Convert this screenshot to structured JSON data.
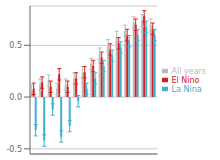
{
  "chart_data": {
    "type": "bar",
    "categories": [
      null,
      null,
      null,
      null,
      null,
      null,
      null,
      null,
      null,
      null,
      null,
      null,
      null,
      null,
      null
    ],
    "series": [
      {
        "name": "All years",
        "color": "#bbbbbb",
        "values": [
          0.06,
          0.12,
          0.16,
          0.08,
          0.12,
          0.18,
          0.24,
          0.32,
          0.42,
          0.5,
          0.58,
          0.64,
          0.72,
          0.74,
          0.7
        ],
        "error": 0.055
      },
      {
        "name": "El Nino",
        "color": "#d42020",
        "values": [
          0.08,
          0.14,
          0.1,
          0.22,
          0.1,
          0.18,
          0.24,
          0.3,
          0.38,
          0.46,
          0.52,
          0.6,
          0.7,
          0.78,
          0.66
        ],
        "error": 0.055
      },
      {
        "name": "La Nina",
        "color": "#40b0d0",
        "values": [
          -0.32,
          -0.42,
          -0.12,
          -0.38,
          -0.28,
          -0.04,
          0.08,
          0.18,
          0.3,
          0.4,
          0.48,
          0.54,
          0.6,
          0.68,
          0.6
        ],
        "error": 0.055
      }
    ],
    "ylim": [
      -0.55,
      0.88
    ],
    "yticks": [
      -0.5,
      {
        "value": 0,
        "label": "0.0"
      },
      0.5
    ],
    "grid": true,
    "legend": "right",
    "tick_labels": "y"
  }
}
